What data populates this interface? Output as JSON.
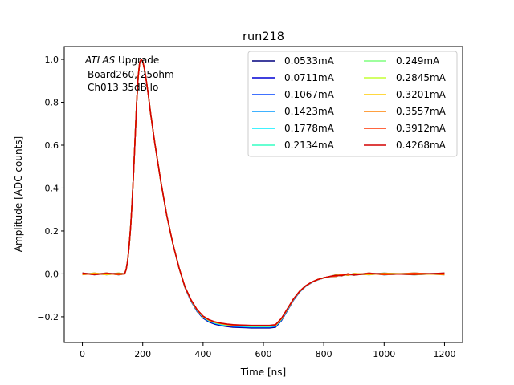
{
  "chart_data": {
    "type": "line",
    "title": "run218",
    "xlabel": "Time [ns]",
    "ylabel": "Amplitude [ADC counts]",
    "xlim": [
      -60,
      1260
    ],
    "ylim": [
      -0.32,
      1.06
    ],
    "xticks": [
      0,
      200,
      400,
      600,
      800,
      1000,
      1200
    ],
    "yticks": [
      -0.2,
      0.0,
      0.2,
      0.4,
      0.6,
      0.8,
      1.0
    ],
    "xtick_labels": [
      "0",
      "200",
      "400",
      "600",
      "800",
      "1000",
      "1200"
    ],
    "ytick_labels": [
      "−0.2",
      "0.0",
      "0.2",
      "0.4",
      "0.6",
      "0.8",
      "1.0"
    ],
    "annotation": {
      "italic": "ATLAS",
      "line1_rest": " Upgrade",
      "line2": "Board260, 25ohm",
      "line3": "Ch013 35dB lo"
    },
    "legend_position": "upper-right",
    "series": [
      {
        "name": "0.0533mA",
        "color": "#00007f",
        "min": -0.252
      },
      {
        "name": "0.0711mA",
        "color": "#0000d4",
        "min": -0.25
      },
      {
        "name": "0.1067mA",
        "color": "#0044ff",
        "min": -0.248
      },
      {
        "name": "0.1423mA",
        "color": "#0099ff",
        "min": -0.247
      },
      {
        "name": "0.1778mA",
        "color": "#00eeff",
        "min": -0.246
      },
      {
        "name": "0.2134mA",
        "color": "#33ffc4",
        "min": -0.245
      },
      {
        "name": "0.249mA",
        "color": "#7fff7f",
        "min": -0.244
      },
      {
        "name": "0.2845mA",
        "color": "#c4ff33",
        "min": -0.243
      },
      {
        "name": "0.3201mA",
        "color": "#ffcc00",
        "min": -0.242
      },
      {
        "name": "0.3557mA",
        "color": "#ff8000",
        "min": -0.242
      },
      {
        "name": "0.3912mA",
        "color": "#ff3300",
        "min": -0.241
      },
      {
        "name": "0.4268mA",
        "color": "#d40000",
        "min": -0.24
      }
    ],
    "shape_points": {
      "x": [
        0,
        40,
        80,
        120,
        140,
        145,
        150,
        155,
        160,
        165,
        170,
        175,
        180,
        185,
        190,
        195,
        200,
        205,
        210,
        215,
        220,
        225,
        230,
        240,
        250,
        260,
        280,
        300,
        320,
        340,
        360,
        380,
        400,
        420,
        440,
        460,
        480,
        500,
        520,
        540,
        560,
        580,
        600,
        620,
        640,
        660,
        680,
        700,
        720,
        740,
        760,
        780,
        800,
        820,
        840,
        860,
        880,
        900,
        950,
        1000,
        1100,
        1200
      ],
      "y": [
        0,
        0,
        0,
        0,
        0,
        0.02,
        0.06,
        0.13,
        0.22,
        0.34,
        0.48,
        0.64,
        0.8,
        0.92,
        0.985,
        1.0,
        0.99,
        0.96,
        0.92,
        0.87,
        0.82,
        0.76,
        0.71,
        0.61,
        0.52,
        0.43,
        0.27,
        0.14,
        0.03,
        -0.06,
        -0.12,
        -0.165,
        -0.195,
        -0.212,
        -0.222,
        -0.228,
        -0.232,
        -0.235,
        -0.236,
        -0.237,
        -0.238,
        -0.238,
        -0.238,
        -0.238,
        -0.235,
        -0.205,
        -0.16,
        -0.115,
        -0.08,
        -0.055,
        -0.038,
        -0.026,
        -0.018,
        -0.012,
        -0.008,
        -0.005,
        -0.003,
        -0.002,
        0,
        0,
        0,
        0
      ]
    }
  }
}
